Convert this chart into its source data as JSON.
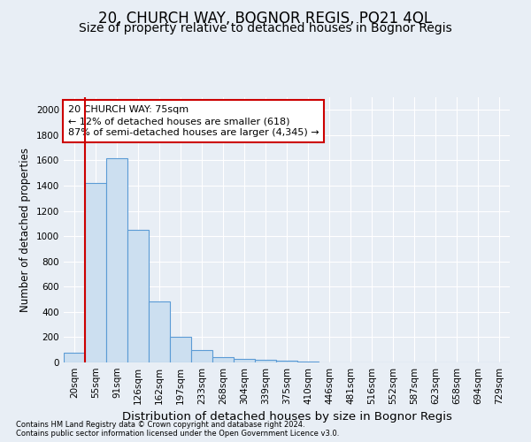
{
  "title1": "20, CHURCH WAY, BOGNOR REGIS, PO21 4QL",
  "title2": "Size of property relative to detached houses in Bognor Regis",
  "xlabel": "Distribution of detached houses by size in Bognor Regis",
  "ylabel": "Number of detached properties",
  "footnote1": "Contains HM Land Registry data © Crown copyright and database right 2024.",
  "footnote2": "Contains public sector information licensed under the Open Government Licence v3.0.",
  "bar_labels": [
    "20sqm",
    "55sqm",
    "91sqm",
    "126sqm",
    "162sqm",
    "197sqm",
    "233sqm",
    "268sqm",
    "304sqm",
    "339sqm",
    "375sqm",
    "410sqm",
    "446sqm",
    "481sqm",
    "516sqm",
    "552sqm",
    "587sqm",
    "623sqm",
    "658sqm",
    "694sqm",
    "729sqm"
  ],
  "bar_values": [
    75,
    1420,
    1620,
    1050,
    480,
    200,
    100,
    45,
    30,
    20,
    15,
    5,
    2,
    1,
    1,
    0,
    0,
    0,
    0,
    0,
    0
  ],
  "bar_color": "#ccdff0",
  "bar_edge_color": "#5b9bd5",
  "marker_line_color": "#cc0000",
  "annotation_line1": "20 CHURCH WAY: 75sqm",
  "annotation_line2": "← 12% of detached houses are smaller (618)",
  "annotation_line3": "87% of semi-detached houses are larger (4,345) →",
  "annotation_box_color": "white",
  "annotation_box_edge": "#cc0000",
  "ylim": [
    0,
    2100
  ],
  "yticks": [
    0,
    200,
    400,
    600,
    800,
    1000,
    1200,
    1400,
    1600,
    1800,
    2000
  ],
  "background_color": "#e8eef5",
  "grid_color": "#ffffff",
  "title1_fontsize": 12,
  "title2_fontsize": 10,
  "xlabel_fontsize": 9.5,
  "ylabel_fontsize": 8.5,
  "tick_fontsize": 7.5,
  "annot_fontsize": 8
}
